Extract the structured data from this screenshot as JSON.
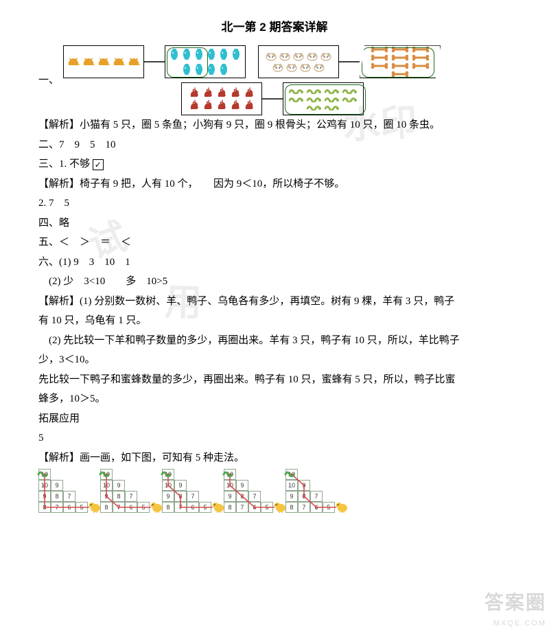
{
  "title": "北一第 2 期答案详解",
  "sections": {
    "one_label": "一、",
    "two_line": "二、7　9　5　10",
    "three_line1_prefix": "三、1. 不够",
    "three_checkmark": "✓",
    "three_line2": "2. 7　5",
    "four_line": "四、略",
    "five_line": "五、＜　＞　＝　＜",
    "six_line1": "六、(1) 9　3　10　1",
    "six_line2": "　(2) 少　3<10　　多　10>5"
  },
  "analysis": {
    "a1": "【解析】小猫有 5 只，圈 5 条鱼；小狗有 9 只，圈 9 根骨头；公鸡有 10 只，圈 10 条虫。",
    "a3": "【解析】椅子有 9 把，人有 10 个，　　因为 9＜10，所以椅子不够。",
    "a61": "【解析】(1) 分别数一数树、羊、鸭子、乌龟各有多少，再填空。树有 9 棵，羊有 3 只，鸭子",
    "a61b": "有 10 只，乌龟有 1 只。",
    "a62": "　(2) 先比较一下羊和鸭子数量的多少，再圈出来。羊有 3 只，鸭子有 10 只，所以，羊比鸭子",
    "a62b": "少，3＜10。",
    "a63": "先比较一下鸭子和蜜蜂数量的多少，再圈出来。鸭子有 10 只，蜜蜂有 5 只，所以，鸭子比蜜",
    "a63b": "蜂多，10＞5。",
    "ext_label": "拓展应用",
    "ext_ans": "5",
    "ext_an": "【解析】画一画，如下图，可知有 5 种走法。"
  },
  "match": {
    "cats": {
      "count": 5,
      "color": "#e8a02a"
    },
    "fish": {
      "count": 10,
      "circled": 5,
      "color": "#2fbfd1"
    },
    "dogs": {
      "count": 9,
      "color": "#c9b79e"
    },
    "bones": {
      "count": 10,
      "circled": 9,
      "color": "#d98b3f",
      "trapezoid": true
    },
    "roosters": {
      "count": 10,
      "color": "#b53a2d"
    },
    "worms": {
      "count": 10,
      "circled": 10,
      "color": "#8fb64a"
    }
  },
  "pyramid": {
    "rows": [
      [
        10
      ],
      [
        10,
        9
      ],
      [
        9,
        8,
        7
      ],
      [
        8,
        7,
        6,
        5
      ]
    ],
    "paths": [
      [
        [
          0,
          0
        ],
        [
          1,
          0
        ],
        [
          2,
          0
        ],
        [
          3,
          0
        ]
      ],
      [
        [
          0,
          0
        ],
        [
          1,
          0
        ],
        [
          2,
          0
        ],
        [
          3,
          1
        ]
      ],
      [
        [
          0,
          0
        ],
        [
          1,
          0
        ],
        [
          2,
          1
        ],
        [
          3,
          1
        ]
      ],
      [
        [
          0,
          0
        ],
        [
          1,
          0
        ],
        [
          2,
          1
        ],
        [
          3,
          2
        ]
      ],
      [
        [
          0,
          0
        ],
        [
          1,
          1
        ],
        [
          2,
          1
        ],
        [
          3,
          2
        ]
      ]
    ],
    "path_color": "#d94a4a",
    "cell_border": "#8fa68e",
    "chick_color": "#f5c542",
    "worm_color": "#4fa64f"
  },
  "watermark": {
    "full": "试用水印",
    "p1": "水印",
    "p2": "试",
    "p3": "用"
  },
  "logo": {
    "cn": "答案圈",
    "en": "MXQE.COM"
  }
}
